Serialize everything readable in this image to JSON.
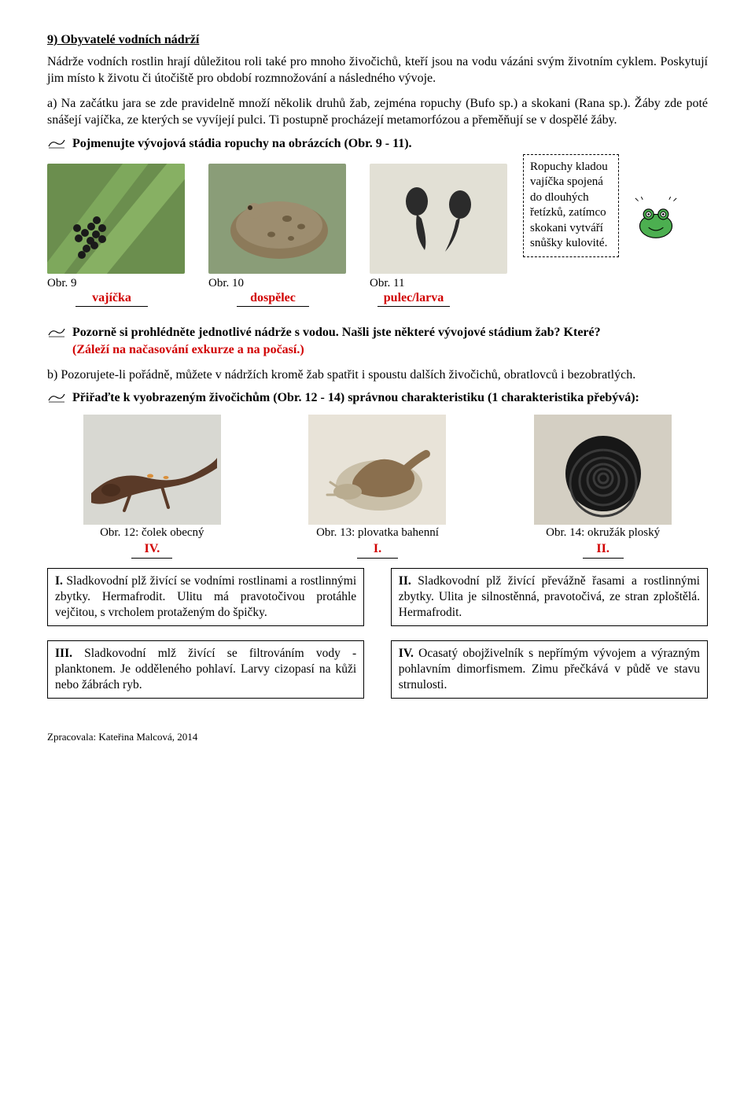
{
  "section9": {
    "title": "9) Obyvatelé vodních nádrží",
    "intro": "Nádrže vodních rostlin hrají důležitou roli také pro mnoho živočichů, kteří jsou na vodu vázáni svým životním cyklem. Poskytují jim místo k životu či útočiště pro období rozmnožování a následného vývoje.",
    "para_a": "a) Na začátku jara se zde pravidelně množí několik druhů žab, zejména ropuchy (Bufo sp.) a skokani (Rana sp.). Žáby zde poté snášejí vajíčka, ze kterých se vyvíjejí pulci. Ti postupně procházejí metamorfózou a přeměňují se v dospělé žáby.",
    "task1": "Pojmenujte vývojová stádia ropuchy na obrázcích (Obr. 9 - 11).",
    "fig9_cap": "Obr. 9",
    "fig9_ans": "vajíčka",
    "fig10_cap": "Obr. 10",
    "fig10_ans": "dospělec",
    "fig11_cap": "Obr. 11",
    "fig11_ans": "pulec/larva",
    "sidebox": "Ropuchy kladou vajíčka spojená do dlouhých řetízků, zatímco skokani vytváří snůšky kulovité.",
    "task2_a": "Pozorně si prohlédněte jednotlivé nádrže s vodou. Našli jste některé vývojové stádium žab? Které?",
    "task2_b": "(Záleží na načasování exkurze a na počasí.)",
    "para_b": "b) Pozorujete-li pořádně, můžete v nádržích kromě žab spatřit i spoustu dalších živočichů, obratlovců i bezobratlých.",
    "task3": "Přiřaďte k vyobrazeným živočichům (Obr. 12 - 14) správnou charakteristiku (1 charakteristika přebývá):",
    "fig12_cap": "Obr. 12: čolek obecný",
    "fig12_ans": "IV.",
    "fig13_cap": "Obr. 13: plovatka bahenní",
    "fig13_ans": "I.",
    "fig14_cap": "Obr. 14: okružák ploský",
    "fig14_ans": "II.",
    "boxI": "I. Sladkovodní plž živící se vodními rostlinami a rostlinnými zbytky. Hermafrodit. Ulitu má pravotočivou protáhle vejčitou, s vrcholem protaženým do špičky.",
    "boxII": "II. Sladkovodní plž živící převážně řasami a rostlinnými zbytky. Ulita je silnostěnná, pravotočivá, ze stran zploštělá. Hermafrodit.",
    "boxIII": "III. Sladkovodní mlž živící se filtrováním vody - planktonem. Je odděleného pohlaví. Larvy cizopasí na kůži nebo žábrách ryb.",
    "boxIV": "IV. Ocasatý obojživelník s nepřímým vývojem a výrazným pohlavním dimorfismem. Zimu přečkává v půdě ve stavu strnulosti."
  },
  "footer": "Zpracovala: Kateřina Malcová, 2014",
  "colors": {
    "red": "#d10000",
    "black": "#000000"
  }
}
